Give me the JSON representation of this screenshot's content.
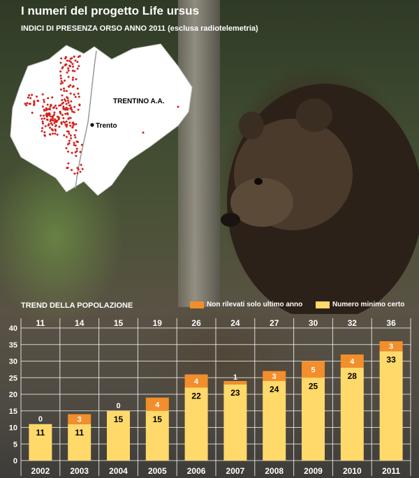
{
  "header": {
    "title": "I numeri del progetto Life ursus",
    "subtitle": "INDICI DI PRESENZA ORSO ANNO 2011 (esclusa radiotelemetria)"
  },
  "map": {
    "region_label": "TRENTINO A.A.",
    "city_label": "Trento"
  },
  "colors": {
    "certain": "#ffd96a",
    "not_detected": "#f28e2b",
    "grid": "#ffffff",
    "text_on_bar": "#000000"
  },
  "chart_data": {
    "type": "bar",
    "stacked": true,
    "title": "TREND DELLA POPOLAZIONE",
    "categories": [
      "2002",
      "2003",
      "2004",
      "2005",
      "2006",
      "2007",
      "2008",
      "2009",
      "2010",
      "2011"
    ],
    "totals": [
      11,
      14,
      15,
      19,
      26,
      24,
      27,
      30,
      32,
      36
    ],
    "series": [
      {
        "name": "Numero minimo certo",
        "values": [
          11,
          11,
          15,
          15,
          22,
          23,
          24,
          25,
          28,
          33
        ]
      },
      {
        "name": "Non rilevati solo ultimo anno",
        "values": [
          0,
          3,
          0,
          4,
          4,
          1,
          3,
          5,
          4,
          3
        ]
      }
    ],
    "ylim": [
      0,
      40
    ],
    "yticks": [
      0,
      5,
      10,
      15,
      20,
      25,
      30,
      35,
      40
    ],
    "grid": true,
    "legend_position": "top-right"
  }
}
